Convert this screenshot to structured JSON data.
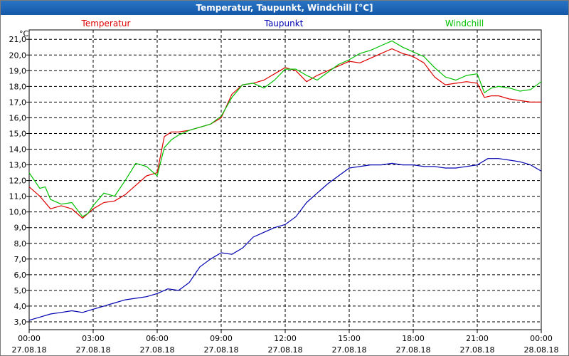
{
  "window": {
    "title": "Temperatur, Taupunkt, Windchill [°C]"
  },
  "chart_data": {
    "type": "line",
    "title": "Temperatur, Taupunkt, Windchill [°C]",
    "ylabel": "°C",
    "ylim": [
      2.5,
      21.6
    ],
    "xlim": [
      "2018-08-27 00:00",
      "2018-08-28 00:00"
    ],
    "grid": true,
    "y_ticks": [
      "3,0",
      "4,0",
      "5,0",
      "6,0",
      "7,0",
      "8,0",
      "9,0",
      "10,0",
      "11,0",
      "12,0",
      "13,0",
      "14,0",
      "15,0",
      "16,0",
      "17,0",
      "18,0",
      "19,0",
      "20,0",
      "21,0"
    ],
    "x_ticks": [
      {
        "time": "00:00",
        "date": "27.08.18"
      },
      {
        "time": "03:00",
        "date": "27.08.18"
      },
      {
        "time": "06:00",
        "date": "27.08.18"
      },
      {
        "time": "09:00",
        "date": "27.08.18"
      },
      {
        "time": "12:00",
        "date": "27.08.18"
      },
      {
        "time": "15:00",
        "date": "27.08.18"
      },
      {
        "time": "18:00",
        "date": "27.08.18"
      },
      {
        "time": "21:00",
        "date": "27.08.18"
      },
      {
        "time": "00:00",
        "date": "28.08.18"
      }
    ],
    "series": [
      {
        "name": "Temperatur",
        "color": "#dd0000",
        "x": [
          "00:00",
          "00:30",
          "01:00",
          "01:30",
          "02:00",
          "02:30",
          "03:00",
          "03:30",
          "04:00",
          "04:30",
          "05:00",
          "05:30",
          "06:00",
          "06:20",
          "06:40",
          "07:00",
          "07:30",
          "08:00",
          "08:30",
          "09:00",
          "09:30",
          "10:00",
          "10:30",
          "11:00",
          "11:30",
          "12:00",
          "12:30",
          "13:00",
          "13:30",
          "14:00",
          "14:30",
          "15:00",
          "15:30",
          "16:00",
          "16:30",
          "17:00",
          "17:30",
          "18:00",
          "18:30",
          "19:00",
          "19:30",
          "20:00",
          "20:30",
          "21:00",
          "21:20",
          "21:40",
          "22:00",
          "22:30",
          "23:00",
          "23:30",
          "00:00"
        ],
        "values": [
          11.6,
          11.0,
          10.2,
          10.4,
          10.2,
          9.6,
          10.2,
          10.6,
          10.7,
          11.1,
          11.7,
          12.3,
          12.5,
          14.8,
          15.1,
          15.1,
          15.2,
          15.4,
          15.6,
          16.0,
          17.5,
          18.1,
          18.2,
          18.4,
          18.8,
          19.2,
          19.0,
          18.3,
          18.7,
          19.0,
          19.3,
          19.6,
          19.5,
          19.8,
          20.1,
          20.4,
          20.1,
          19.9,
          19.5,
          18.6,
          18.1,
          18.2,
          18.3,
          18.2,
          17.3,
          17.4,
          17.4,
          17.2,
          17.1,
          17.0,
          17.0
        ]
      },
      {
        "name": "Taupunkt",
        "color": "#0000b0",
        "x": [
          "00:00",
          "00:30",
          "01:00",
          "01:30",
          "02:00",
          "02:30",
          "03:00",
          "03:30",
          "04:00",
          "04:30",
          "05:00",
          "05:30",
          "06:00",
          "06:30",
          "07:00",
          "07:30",
          "08:00",
          "08:30",
          "09:00",
          "09:30",
          "10:00",
          "10:30",
          "11:00",
          "11:30",
          "12:00",
          "12:30",
          "13:00",
          "13:30",
          "14:00",
          "14:30",
          "15:00",
          "15:30",
          "16:00",
          "16:30",
          "17:00",
          "17:30",
          "18:00",
          "18:30",
          "19:00",
          "19:30",
          "20:00",
          "20:30",
          "21:00",
          "21:30",
          "22:00",
          "22:30",
          "23:00",
          "23:30",
          "00:00"
        ],
        "values": [
          3.1,
          3.3,
          3.5,
          3.6,
          3.7,
          3.6,
          3.8,
          4.0,
          4.2,
          4.4,
          4.5,
          4.6,
          4.8,
          5.1,
          5.0,
          5.5,
          6.5,
          7.0,
          7.4,
          7.3,
          7.7,
          8.4,
          8.7,
          9.0,
          9.2,
          9.7,
          10.6,
          11.2,
          11.8,
          12.3,
          12.8,
          12.9,
          13.0,
          13.0,
          13.1,
          13.0,
          13.0,
          12.9,
          12.9,
          12.8,
          12.8,
          12.9,
          13.0,
          13.4,
          13.4,
          13.3,
          13.2,
          13.0,
          12.6
        ]
      },
      {
        "name": "Windchill",
        "color": "#00c000",
        "x": [
          "00:00",
          "00:15",
          "00:30",
          "00:45",
          "01:00",
          "01:30",
          "02:00",
          "02:30",
          "02:45",
          "03:00",
          "03:30",
          "04:00",
          "04:30",
          "05:00",
          "05:30",
          "06:00",
          "06:20",
          "06:40",
          "07:00",
          "07:30",
          "08:00",
          "08:30",
          "09:00",
          "09:30",
          "10:00",
          "10:30",
          "11:00",
          "11:30",
          "12:00",
          "12:30",
          "13:00",
          "13:30",
          "14:00",
          "14:30",
          "15:00",
          "15:30",
          "16:00",
          "16:30",
          "17:00",
          "17:30",
          "18:00",
          "18:30",
          "19:00",
          "19:30",
          "20:00",
          "20:30",
          "21:00",
          "21:20",
          "21:40",
          "22:00",
          "22:30",
          "23:00",
          "23:30",
          "00:00"
        ],
        "values": [
          12.5,
          12.0,
          11.5,
          11.6,
          10.8,
          10.5,
          10.6,
          9.7,
          9.9,
          10.4,
          11.2,
          11.0,
          12.0,
          13.1,
          12.9,
          12.3,
          14.1,
          14.6,
          14.9,
          15.2,
          15.4,
          15.6,
          16.1,
          17.3,
          18.1,
          18.2,
          17.9,
          18.4,
          19.1,
          19.1,
          18.7,
          18.4,
          18.9,
          19.4,
          19.7,
          20.1,
          20.3,
          20.6,
          20.9,
          20.5,
          20.2,
          19.9,
          19.2,
          18.6,
          18.4,
          18.7,
          18.8,
          17.6,
          17.9,
          18.0,
          17.9,
          17.7,
          17.8,
          18.3
        ]
      }
    ]
  }
}
